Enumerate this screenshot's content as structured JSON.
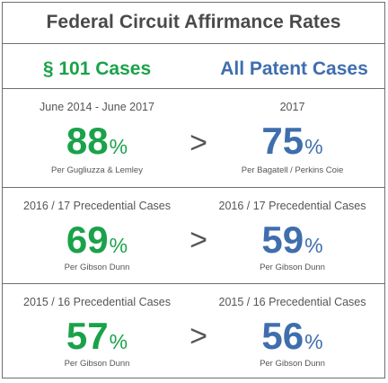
{
  "title": "Federal Circuit Affirmance Rates",
  "columns": {
    "left": "§ 101 Cases",
    "right": "All Patent Cases"
  },
  "comparison_symbol": ">",
  "percent_sign": "%",
  "rows": [
    {
      "left": {
        "period": "June 2014 - June 2017",
        "value": "88",
        "source": "Per Gugliuzza & Lemley"
      },
      "right": {
        "period": "2017",
        "value": "75",
        "source": "Per Bagatell / Perkins Coie"
      }
    },
    {
      "left": {
        "period": "2016 / 17 Precedential Cases",
        "value": "69",
        "source": "Per Gibson Dunn"
      },
      "right": {
        "period": "2016 / 17 Precedential Cases",
        "value": "59",
        "source": "Per Gibson Dunn"
      }
    },
    {
      "left": {
        "period": "2015 / 16 Precedential Cases",
        "value": "57",
        "source": "Per Gibson Dunn"
      },
      "right": {
        "period": "2015 / 16 Precedential Cases",
        "value": "56",
        "source": "Per Gibson Dunn"
      }
    }
  ],
  "colors": {
    "section_101": "#1aa24a",
    "all_patent": "#3f6ead",
    "text": "#555555",
    "border": "#6f6f6f"
  }
}
